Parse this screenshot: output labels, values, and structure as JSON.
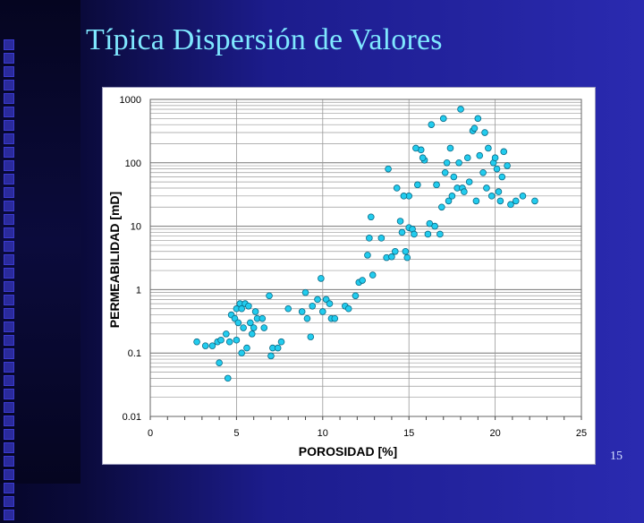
{
  "slide": {
    "title": "Típica Dispersión de Valores",
    "page_number": "15"
  },
  "chart_data": {
    "type": "scatter",
    "title": "",
    "xlabel": "POROSIDAD [%]",
    "ylabel": "PERMEABILIDAD [mD]",
    "xlim": [
      0,
      25
    ],
    "ylim": [
      0.01,
      1000
    ],
    "yscale": "log",
    "grid": true,
    "x_ticks": [
      0,
      5,
      10,
      15,
      20,
      25
    ],
    "y_ticks": [
      0.01,
      0.1,
      1,
      10,
      100,
      1000
    ],
    "y_tick_labels": [
      "0.01",
      "0.1",
      "1",
      "10",
      "100",
      "1000"
    ],
    "colors": {
      "marker_fill": "#22ccee",
      "marker_stroke": "#0a6a86",
      "grid": "#777777"
    },
    "points": [
      [
        2.7,
        0.15
      ],
      [
        3.2,
        0.13
      ],
      [
        3.6,
        0.13
      ],
      [
        3.9,
        0.15
      ],
      [
        4.0,
        0.07
      ],
      [
        4.1,
        0.16
      ],
      [
        4.4,
        0.2
      ],
      [
        4.5,
        0.04
      ],
      [
        4.6,
        0.15
      ],
      [
        4.7,
        0.4
      ],
      [
        4.9,
        0.35
      ],
      [
        5.0,
        0.5
      ],
      [
        5.0,
        0.16
      ],
      [
        5.1,
        0.3
      ],
      [
        5.2,
        0.6
      ],
      [
        5.3,
        0.5
      ],
      [
        5.3,
        0.1
      ],
      [
        5.4,
        0.25
      ],
      [
        5.5,
        0.6
      ],
      [
        5.6,
        0.12
      ],
      [
        5.7,
        0.55
      ],
      [
        5.8,
        0.3
      ],
      [
        5.9,
        0.2
      ],
      [
        6.0,
        0.25
      ],
      [
        6.1,
        0.45
      ],
      [
        6.2,
        0.35
      ],
      [
        6.5,
        0.35
      ],
      [
        6.6,
        0.25
      ],
      [
        6.9,
        0.8
      ],
      [
        7.0,
        0.09
      ],
      [
        7.1,
        0.12
      ],
      [
        7.4,
        0.12
      ],
      [
        7.6,
        0.15
      ],
      [
        8.0,
        0.5
      ],
      [
        8.8,
        0.45
      ],
      [
        9.0,
        0.9
      ],
      [
        9.1,
        0.35
      ],
      [
        9.3,
        0.18
      ],
      [
        9.4,
        0.55
      ],
      [
        9.7,
        0.7
      ],
      [
        9.9,
        1.5
      ],
      [
        10.0,
        0.45
      ],
      [
        10.2,
        0.7
      ],
      [
        10.4,
        0.6
      ],
      [
        10.5,
        0.35
      ],
      [
        10.7,
        0.35
      ],
      [
        11.3,
        0.55
      ],
      [
        11.5,
        0.5
      ],
      [
        11.9,
        0.8
      ],
      [
        12.1,
        1.3
      ],
      [
        12.3,
        1.4
      ],
      [
        12.6,
        3.5
      ],
      [
        12.7,
        6.5
      ],
      [
        12.8,
        14
      ],
      [
        12.9,
        1.7
      ],
      [
        13.4,
        6.5
      ],
      [
        13.7,
        3.2
      ],
      [
        13.8,
        80
      ],
      [
        14.0,
        3.3
      ],
      [
        14.2,
        4.0
      ],
      [
        14.3,
        40
      ],
      [
        14.5,
        12
      ],
      [
        14.6,
        8
      ],
      [
        14.8,
        4.0
      ],
      [
        14.9,
        3.2
      ],
      [
        15.0,
        9.5
      ],
      [
        15.0,
        30
      ],
      [
        15.2,
        9
      ],
      [
        15.3,
        7.5
      ],
      [
        15.5,
        45
      ],
      [
        15.7,
        160
      ],
      [
        15.9,
        110
      ],
      [
        16.1,
        7.5
      ],
      [
        16.2,
        11
      ],
      [
        16.3,
        400
      ],
      [
        16.5,
        10
      ],
      [
        16.8,
        7.5
      ],
      [
        16.9,
        20
      ],
      [
        17.0,
        500
      ],
      [
        17.1,
        70
      ],
      [
        17.3,
        25
      ],
      [
        17.4,
        170
      ],
      [
        17.5,
        30
      ],
      [
        17.6,
        60
      ],
      [
        17.8,
        40
      ],
      [
        17.9,
        100
      ],
      [
        18.0,
        700
      ],
      [
        18.1,
        40
      ],
      [
        18.2,
        35
      ],
      [
        18.4,
        120
      ],
      [
        18.5,
        50
      ],
      [
        18.7,
        320
      ],
      [
        18.9,
        25
      ],
      [
        19.0,
        500
      ],
      [
        19.1,
        130
      ],
      [
        19.3,
        70
      ],
      [
        19.5,
        40
      ],
      [
        19.6,
        170
      ],
      [
        19.8,
        30
      ],
      [
        19.9,
        100
      ],
      [
        20.0,
        120
      ],
      [
        20.1,
        80
      ],
      [
        20.2,
        35
      ],
      [
        20.3,
        25
      ],
      [
        20.5,
        150
      ],
      [
        20.7,
        90
      ],
      [
        20.9,
        22
      ],
      [
        21.2,
        25
      ],
      [
        21.6,
        30
      ],
      [
        22.3,
        25
      ],
      [
        15.4,
        170
      ],
      [
        16.6,
        45
      ],
      [
        18.8,
        350
      ],
      [
        14.7,
        30
      ],
      [
        19.4,
        300
      ],
      [
        17.2,
        100
      ],
      [
        15.8,
        120
      ],
      [
        20.4,
        60
      ]
    ]
  }
}
